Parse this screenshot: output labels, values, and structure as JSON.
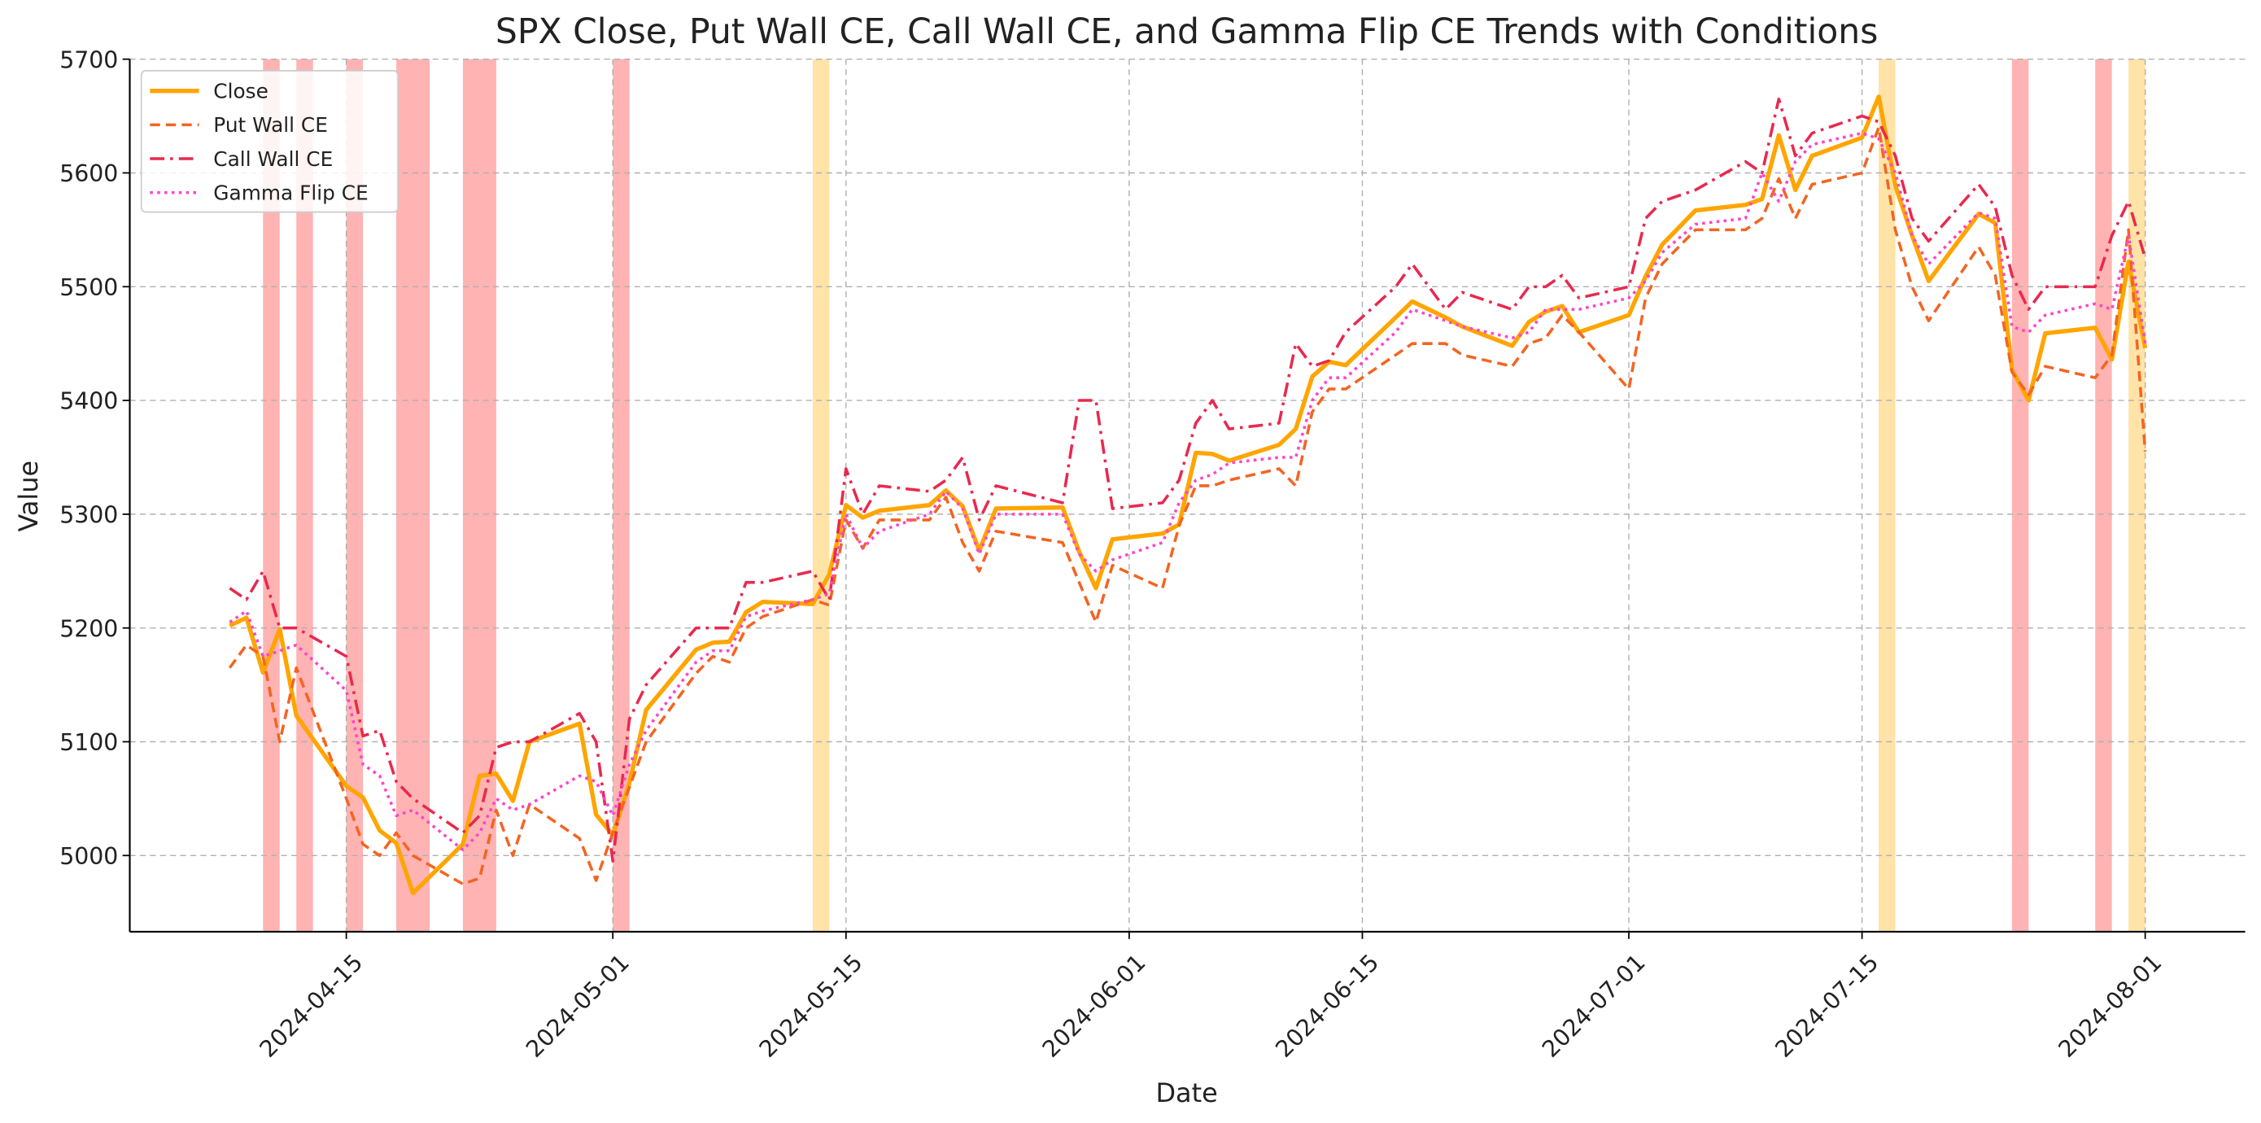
{
  "chart_data": {
    "type": "line",
    "title": "SPX Close, Put Wall CE, Call Wall CE, and Gamma Flip CE Trends with Conditions",
    "x_label": "Date",
    "y_label": "Value",
    "x": [
      "2024-04-08",
      "2024-04-09",
      "2024-04-10",
      "2024-04-11",
      "2024-04-12",
      "2024-04-15",
      "2024-04-16",
      "2024-04-17",
      "2024-04-18",
      "2024-04-19",
      "2024-04-22",
      "2024-04-23",
      "2024-04-24",
      "2024-04-25",
      "2024-04-26",
      "2024-04-29",
      "2024-04-30",
      "2024-05-01",
      "2024-05-02",
      "2024-05-03",
      "2024-05-06",
      "2024-05-07",
      "2024-05-08",
      "2024-05-09",
      "2024-05-10",
      "2024-05-13",
      "2024-05-14",
      "2024-05-15",
      "2024-05-16",
      "2024-05-17",
      "2024-05-20",
      "2024-05-21",
      "2024-05-22",
      "2024-05-23",
      "2024-05-24",
      "2024-05-28",
      "2024-05-29",
      "2024-05-30",
      "2024-05-31",
      "2024-06-03",
      "2024-06-04",
      "2024-06-05",
      "2024-06-06",
      "2024-06-07",
      "2024-06-10",
      "2024-06-11",
      "2024-06-12",
      "2024-06-13",
      "2024-06-14",
      "2024-06-17",
      "2024-06-18",
      "2024-06-20",
      "2024-06-21",
      "2024-06-24",
      "2024-06-25",
      "2024-06-26",
      "2024-06-27",
      "2024-06-28",
      "2024-07-01",
      "2024-07-02",
      "2024-07-03",
      "2024-07-05",
      "2024-07-08",
      "2024-07-09",
      "2024-07-10",
      "2024-07-11",
      "2024-07-12",
      "2024-07-15",
      "2024-07-16",
      "2024-07-17",
      "2024-07-18",
      "2024-07-19",
      "2024-07-22",
      "2024-07-23",
      "2024-07-24",
      "2024-07-25",
      "2024-07-26",
      "2024-07-29",
      "2024-07-30",
      "2024-07-31",
      "2024-08-01"
    ],
    "series": [
      {
        "name": "Close",
        "color": "#ffa500",
        "style": "solid",
        "values": [
          5202,
          5209,
          5161,
          5199,
          5123,
          5061,
          5051,
          5022,
          5011,
          4967,
          5010,
          5070,
          5072,
          5048,
          5100,
          5116,
          5036,
          5018,
          5064,
          5128,
          5181,
          5187,
          5188,
          5214,
          5223,
          5221,
          5247,
          5308,
          5297,
          5303,
          5308,
          5321,
          5307,
          5268,
          5305,
          5306,
          5267,
          5235,
          5278,
          5283,
          5291,
          5354,
          5353,
          5347,
          5361,
          5375,
          5421,
          5434,
          5431,
          5473,
          5487,
          5473,
          5465,
          5448,
          5469,
          5478,
          5483,
          5460,
          5475,
          5509,
          5537,
          5567,
          5572,
          5577,
          5633,
          5585,
          5615,
          5631,
          5667,
          5589,
          5545,
          5505,
          5564,
          5556,
          5427,
          5400,
          5459,
          5464,
          5436,
          5522,
          5446
        ]
      },
      {
        "name": "Put Wall CE",
        "color": "#f26522",
        "style": "dashed",
        "values": [
          5165,
          5185,
          5175,
          5100,
          5165,
          5050,
          5010,
          5000,
          5020,
          5000,
          4975,
          4980,
          5040,
          5000,
          5045,
          5015,
          4978,
          5020,
          5060,
          5100,
          5160,
          5175,
          5170,
          5200,
          5210,
          5225,
          5220,
          5295,
          5270,
          5295,
          5295,
          5315,
          5275,
          5250,
          5285,
          5275,
          5240,
          5205,
          5255,
          5235,
          5290,
          5325,
          5325,
          5330,
          5340,
          5325,
          5390,
          5410,
          5410,
          5440,
          5450,
          5450,
          5440,
          5430,
          5450,
          5455,
          5475,
          5460,
          5410,
          5490,
          5520,
          5550,
          5550,
          5560,
          5595,
          5560,
          5590,
          5600,
          5640,
          5550,
          5500,
          5470,
          5535,
          5510,
          5425,
          5405,
          5430,
          5420,
          5440,
          5550,
          5355
        ]
      },
      {
        "name": "Call Wall CE",
        "color": "#e8294f",
        "style": "dashdot",
        "values": [
          5235,
          5225,
          5250,
          5200,
          5200,
          5175,
          5105,
          5110,
          5065,
          5050,
          5020,
          5035,
          5095,
          5100,
          5100,
          5125,
          5100,
          4995,
          5120,
          5150,
          5200,
          5200,
          5200,
          5240,
          5240,
          5250,
          5225,
          5340,
          5300,
          5325,
          5320,
          5330,
          5350,
          5295,
          5325,
          5310,
          5400,
          5400,
          5305,
          5310,
          5330,
          5380,
          5400,
          5375,
          5380,
          5450,
          5430,
          5435,
          5460,
          5500,
          5520,
          5480,
          5495,
          5480,
          5500,
          5500,
          5510,
          5490,
          5500,
          5560,
          5575,
          5585,
          5610,
          5600,
          5665,
          5615,
          5635,
          5650,
          5645,
          5615,
          5560,
          5540,
          5590,
          5570,
          5510,
          5480,
          5500,
          5500,
          5545,
          5575,
          5525
        ]
      },
      {
        "name": "Gamma Flip CE",
        "color": "#ff44cc",
        "style": "dotted",
        "values": [
          5205,
          5215,
          5175,
          5180,
          5185,
          5145,
          5080,
          5070,
          5035,
          5040,
          5005,
          5020,
          5050,
          5040,
          5045,
          5070,
          5065,
          5035,
          5080,
          5110,
          5170,
          5180,
          5180,
          5210,
          5215,
          5225,
          5230,
          5300,
          5270,
          5285,
          5300,
          5320,
          5305,
          5265,
          5300,
          5300,
          5265,
          5250,
          5260,
          5275,
          5310,
          5330,
          5335,
          5345,
          5350,
          5350,
          5400,
          5420,
          5420,
          5460,
          5480,
          5470,
          5465,
          5455,
          5460,
          5480,
          5480,
          5480,
          5490,
          5505,
          5530,
          5555,
          5560,
          5600,
          5575,
          5610,
          5625,
          5635,
          5630,
          5600,
          5545,
          5520,
          5565,
          5560,
          5465,
          5460,
          5475,
          5485,
          5480,
          5545,
          5450
        ]
      }
    ],
    "highlights": [
      {
        "start": "2024-04-10",
        "end": "2024-04-11",
        "color": "#ff9999"
      },
      {
        "start": "2024-04-12",
        "end": "2024-04-13",
        "color": "#ff9999"
      },
      {
        "start": "2024-04-15",
        "end": "2024-04-16",
        "color": "#ff9999"
      },
      {
        "start": "2024-04-18",
        "end": "2024-04-19",
        "color": "#ff9999"
      },
      {
        "start": "2024-04-19",
        "end": "2024-04-20",
        "color": "#ff9999"
      },
      {
        "start": "2024-04-22",
        "end": "2024-04-23",
        "color": "#ff9999"
      },
      {
        "start": "2024-04-23",
        "end": "2024-04-24",
        "color": "#ff9999"
      },
      {
        "start": "2024-05-01",
        "end": "2024-05-02",
        "color": "#ff9999"
      },
      {
        "start": "2024-05-13",
        "end": "2024-05-14",
        "color": "#ffd98a"
      },
      {
        "start": "2024-07-16",
        "end": "2024-07-17",
        "color": "#ffd98a"
      },
      {
        "start": "2024-07-24",
        "end": "2024-07-25",
        "color": "#ff9999"
      },
      {
        "start": "2024-07-29",
        "end": "2024-07-30",
        "color": "#ff9999"
      },
      {
        "start": "2024-07-31",
        "end": "2024-08-01",
        "color": "#ffd98a"
      }
    ],
    "xlim": [
      "2024-04-02",
      "2024-08-07"
    ],
    "xticks": [
      "2024-04-15",
      "2024-05-01",
      "2024-05-15",
      "2024-06-01",
      "2024-06-15",
      "2024-07-01",
      "2024-07-15",
      "2024-08-01"
    ],
    "ylim": [
      4933,
      5700
    ],
    "yticks": [
      5000,
      5100,
      5200,
      5300,
      5400,
      5500,
      5600,
      5700
    ],
    "grid": true,
    "legend": "upper left"
  }
}
